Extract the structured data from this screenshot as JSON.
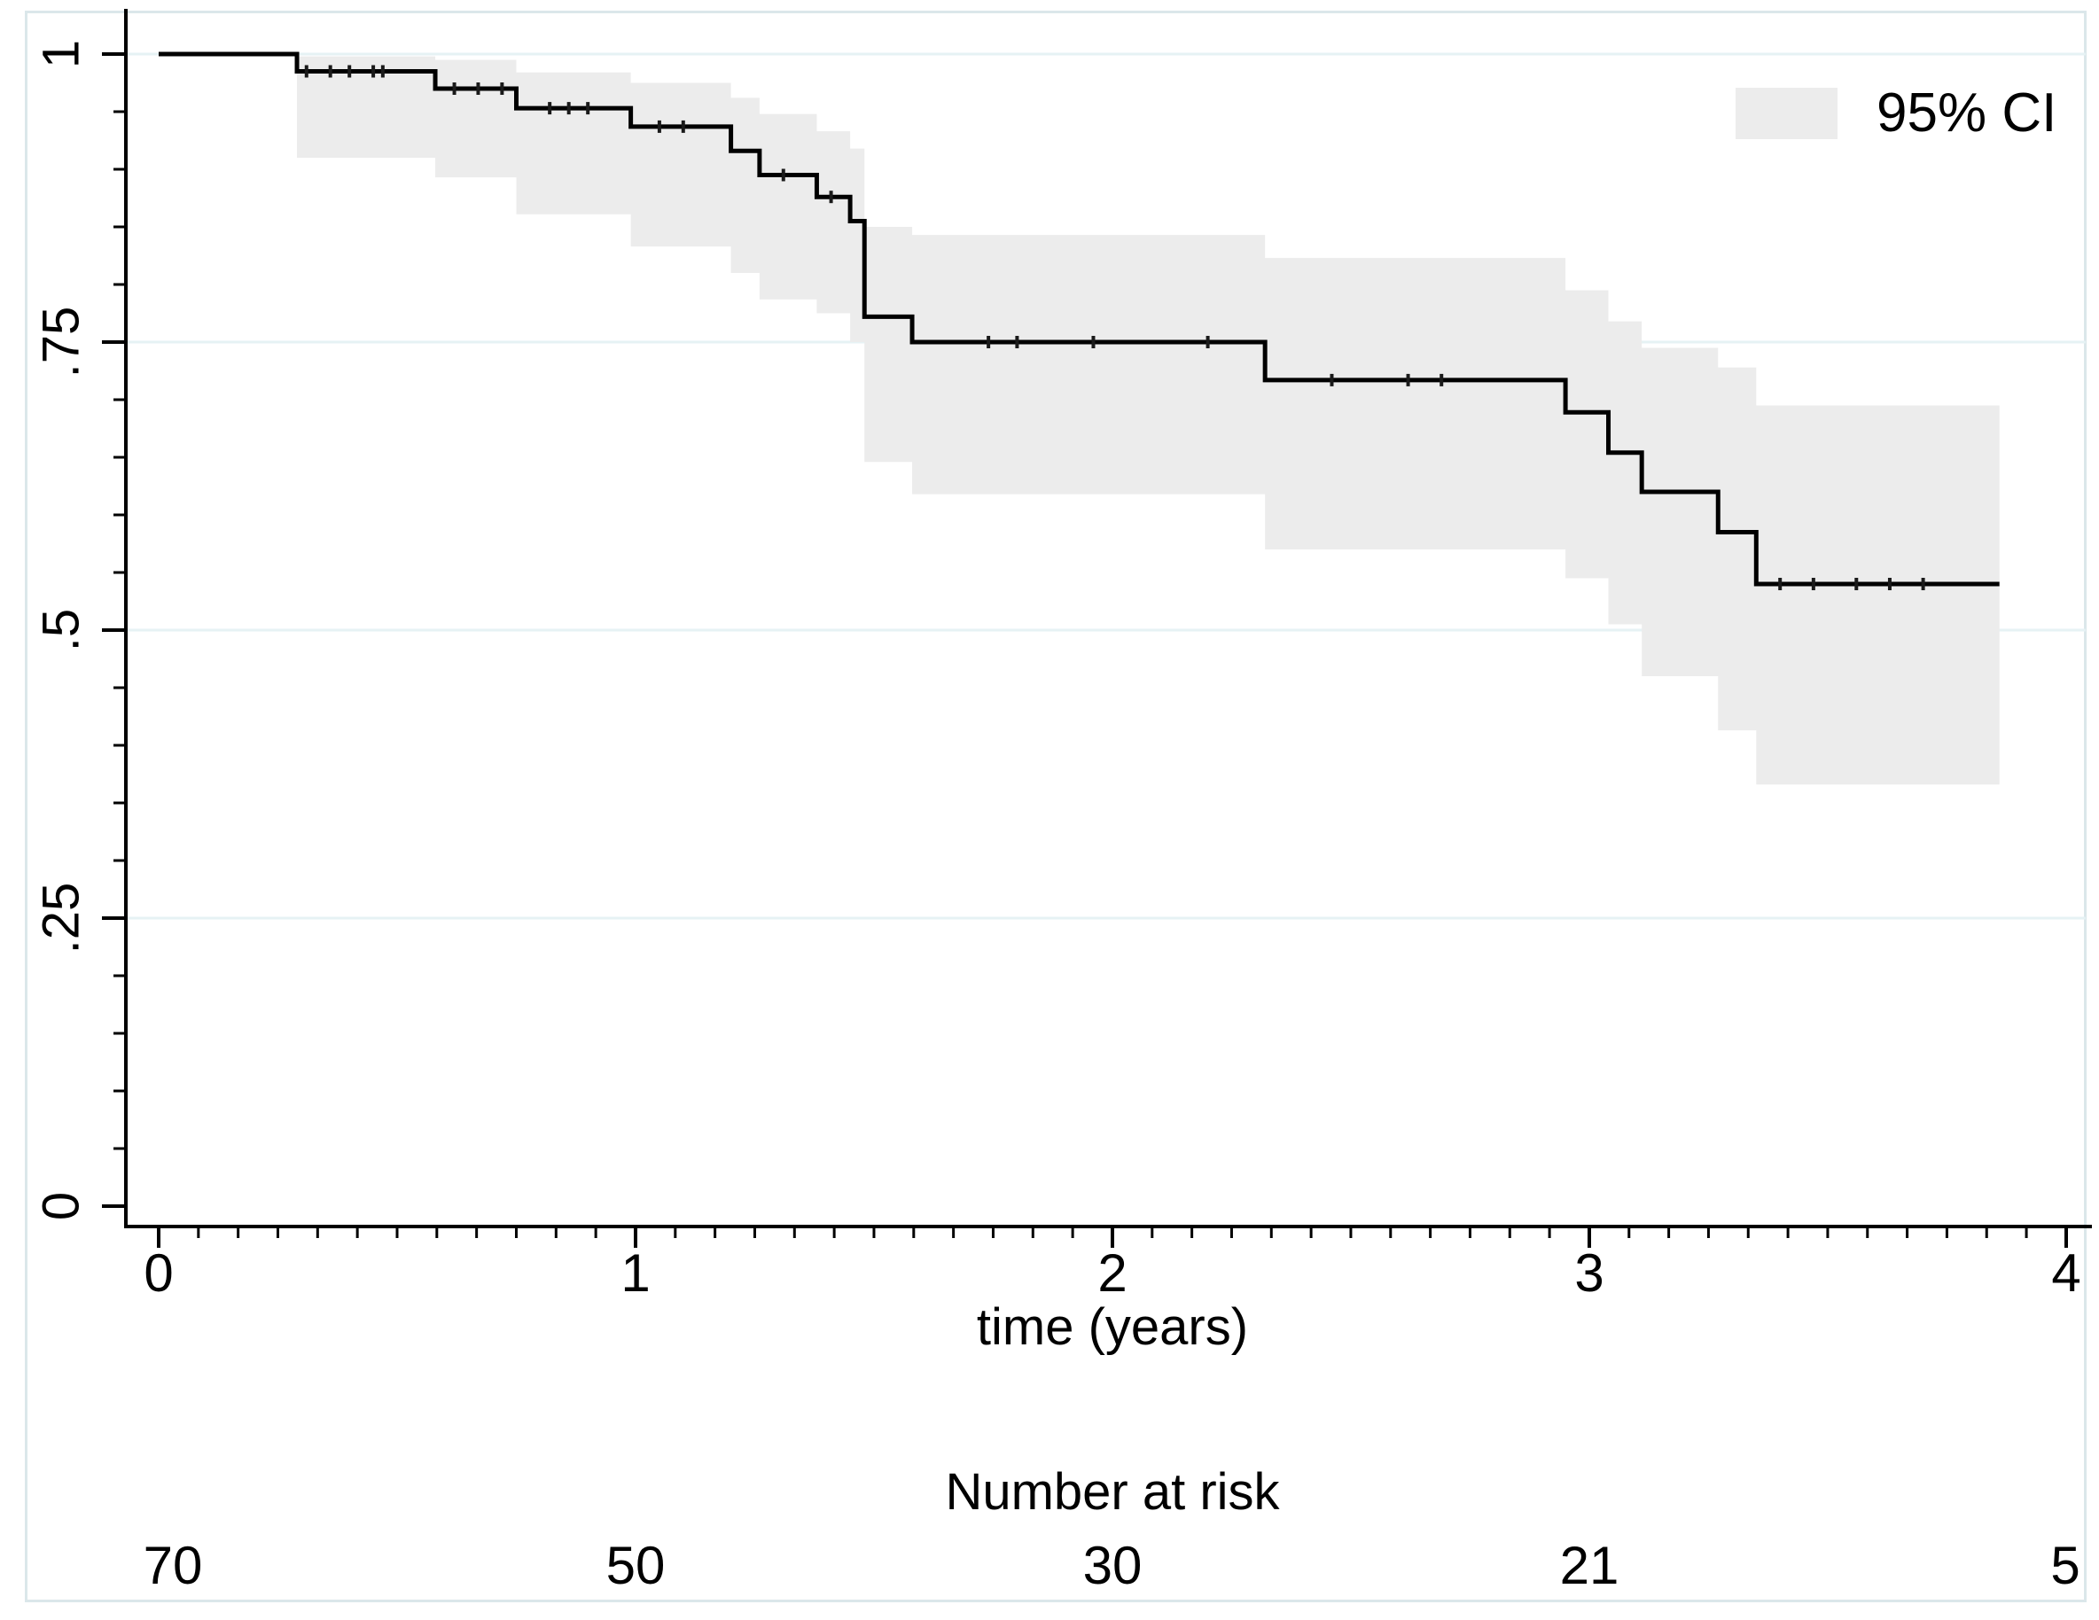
{
  "page": {
    "background": "#ffffff",
    "frame_color": "#dbe7ea"
  },
  "chart_data": {
    "type": "line",
    "subtype": "kaplan-meier-step",
    "title": "",
    "xlabel": "time (years)",
    "ylabel": "",
    "xlim": [
      0,
      4
    ],
    "ylim": [
      0,
      1
    ],
    "grid": {
      "horizontal_major": true,
      "vertical": false,
      "color": "#e6f2f4"
    },
    "x_ticks": [
      {
        "value": 0,
        "label": "0"
      },
      {
        "value": 1,
        "label": "1"
      },
      {
        "value": 2,
        "label": "2"
      },
      {
        "value": 3,
        "label": "3"
      },
      {
        "value": 4,
        "label": "4"
      }
    ],
    "x_minor_tick_interval": 0.08333,
    "y_ticks": [
      {
        "value": 1,
        "label": "1"
      },
      {
        "value": 0.75,
        "label": ".75"
      },
      {
        "value": 0.5,
        "label": ".5"
      },
      {
        "value": 0.25,
        "label": ".25"
      },
      {
        "value": 0,
        "label": "0"
      }
    ],
    "y_minor_tick_interval": 0.05,
    "legend": [
      {
        "label": "95% CI",
        "type": "area",
        "color": "#ececec",
        "position": "top-right"
      }
    ],
    "line_color": "#000000",
    "ci_color": "#ececec",
    "axis_color": "#000000",
    "end_time": 3.86,
    "steps": [
      {
        "t": 0.0,
        "s": 1.0,
        "lb": 1.0,
        "ub": 1.0
      },
      {
        "t": 0.29,
        "s": 0.985,
        "lb": 0.91,
        "ub": 0.998
      },
      {
        "t": 0.58,
        "s": 0.97,
        "lb": 0.893,
        "ub": 0.995
      },
      {
        "t": 0.75,
        "s": 0.953,
        "lb": 0.861,
        "ub": 0.984
      },
      {
        "t": 0.99,
        "s": 0.937,
        "lb": 0.833,
        "ub": 0.975
      },
      {
        "t": 1.2,
        "s": 0.916,
        "lb": 0.81,
        "ub": 0.962
      },
      {
        "t": 1.26,
        "s": 0.895,
        "lb": 0.787,
        "ub": 0.948
      },
      {
        "t": 1.38,
        "s": 0.876,
        "lb": 0.775,
        "ub": 0.933
      },
      {
        "t": 1.45,
        "s": 0.855,
        "lb": 0.75,
        "ub": 0.918
      },
      {
        "t": 1.48,
        "s": 0.772,
        "lb": 0.646,
        "ub": 0.85
      },
      {
        "t": 1.58,
        "s": 0.75,
        "lb": 0.618,
        "ub": 0.843
      },
      {
        "t": 2.32,
        "s": 0.717,
        "lb": 0.57,
        "ub": 0.823
      },
      {
        "t": 2.95,
        "s": 0.689,
        "lb": 0.545,
        "ub": 0.795
      },
      {
        "t": 3.04,
        "s": 0.654,
        "lb": 0.505,
        "ub": 0.768
      },
      {
        "t": 3.11,
        "s": 0.62,
        "lb": 0.46,
        "ub": 0.745
      },
      {
        "t": 3.27,
        "s": 0.585,
        "lb": 0.413,
        "ub": 0.728
      },
      {
        "t": 3.35,
        "s": 0.54,
        "lb": 0.366,
        "ub": 0.695
      }
    ],
    "censor_times": [
      0.31,
      0.36,
      0.4,
      0.45,
      0.47,
      0.62,
      0.67,
      0.72,
      0.82,
      0.86,
      0.9,
      1.05,
      1.1,
      1.31,
      1.41,
      1.74,
      1.8,
      1.96,
      2.2,
      2.46,
      2.62,
      2.69,
      3.4,
      3.47,
      3.56,
      3.63,
      3.7
    ],
    "number_at_risk": {
      "header": "Number at risk",
      "times": [
        0,
        1,
        2,
        3,
        4
      ],
      "counts": [
        "70",
        "50",
        "30",
        "21",
        "5"
      ]
    }
  }
}
